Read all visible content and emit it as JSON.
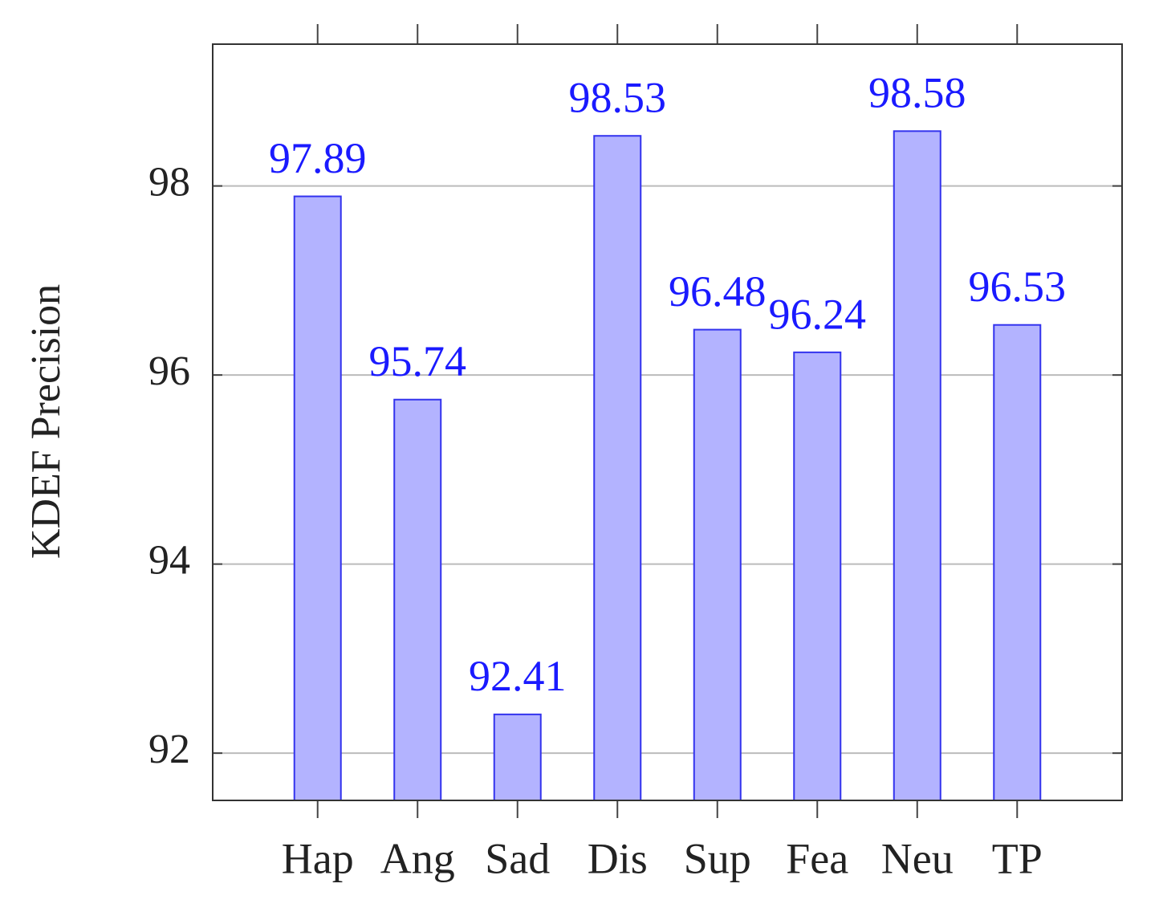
{
  "chart_data": {
    "type": "bar",
    "ylabel": "KDEF Precision",
    "categories": [
      "Hap",
      "Ang",
      "Sad",
      "Dis",
      "Sup",
      "Fea",
      "Neu",
      "TP"
    ],
    "values": [
      97.89,
      95.74,
      92.41,
      98.53,
      96.48,
      96.24,
      98.58,
      96.53
    ],
    "color": "#b3b3ff",
    "edge_color": "#3333ee",
    "label_color": "#1a1aff",
    "ylim": [
      91.5,
      99.5
    ],
    "yticks": [
      92,
      94,
      96,
      98
    ],
    "grid": true
  }
}
